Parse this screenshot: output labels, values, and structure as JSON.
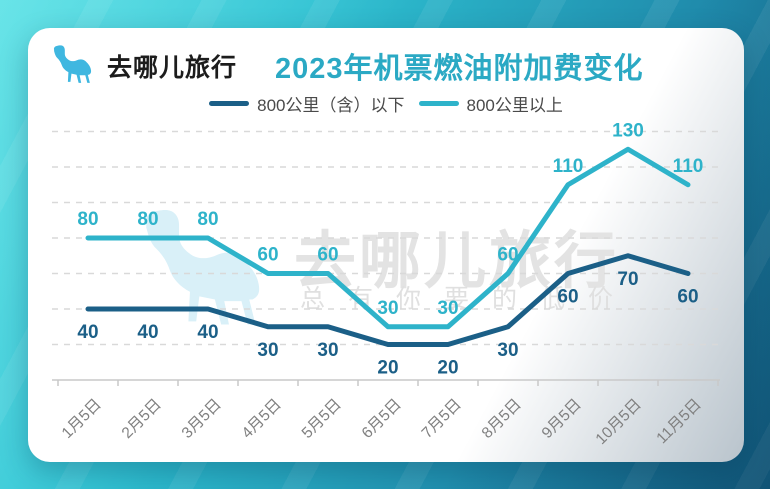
{
  "header": {
    "logo_text": "去哪儿旅行",
    "title": "2023年机票燃油附加费变化"
  },
  "watermark": {
    "brand": "去哪儿旅行",
    "slogan": "总有你要的低价"
  },
  "chart_data": {
    "type": "line",
    "title": "2023年机票燃油附加费变化",
    "categories": [
      "1月5日",
      "2月5日",
      "3月5日",
      "4月5日",
      "5月5日",
      "6月5日",
      "7月5日",
      "8月5日",
      "9月5日",
      "10月5日",
      "11月5日"
    ],
    "series": [
      {
        "name": "800公里（含）以下",
        "color": "#1b5f87",
        "values": [
          40,
          40,
          40,
          30,
          30,
          20,
          20,
          30,
          60,
          70,
          60
        ],
        "label_position": "below"
      },
      {
        "name": "800公里以上",
        "color": "#2eb3ca",
        "values": [
          80,
          80,
          80,
          60,
          60,
          30,
          30,
          60,
          110,
          130,
          110
        ],
        "label_position": "above"
      }
    ],
    "xlabel": "",
    "ylabel": "",
    "ylim": [
      0,
      150
    ],
    "gridline_values": [
      20,
      40,
      60,
      80,
      100,
      120,
      140
    ],
    "grid_style": "dashed",
    "legend_position": "top",
    "data_labels": true,
    "x_label_rotation": -45
  },
  "colors": {
    "title": "#2ba9c4",
    "series_dark": "#1b5f87",
    "series_teal": "#2eb3ca",
    "grid": "#d9d9d9",
    "axis": "#c9c9c9",
    "x_label": "#808080",
    "legend_text": "#4a4a4a",
    "logo_camel": "#3fb7e0",
    "watermark_text": "#e3e3e3",
    "watermark_camel": "#d9f0f8",
    "card_background": "#ffffff",
    "background_gradient_from": "#43dde2",
    "background_gradient_to": "#15668a"
  }
}
